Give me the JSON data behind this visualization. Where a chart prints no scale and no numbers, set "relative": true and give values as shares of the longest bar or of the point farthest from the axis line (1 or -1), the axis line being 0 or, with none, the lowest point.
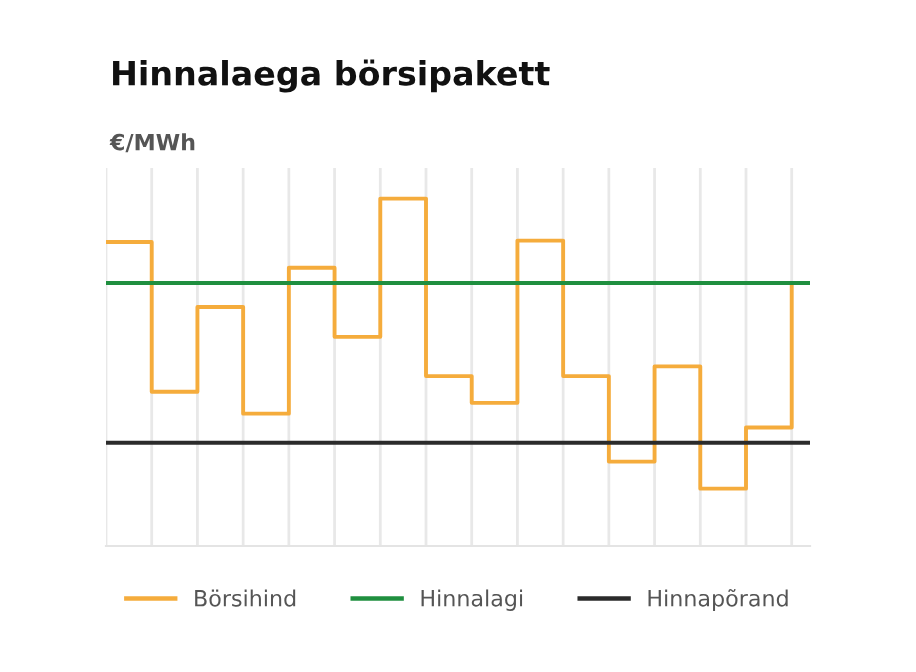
{
  "chart_data": {
    "type": "step",
    "title": "Hinnalaega börsipakett",
    "ylabel": "€/MWh",
    "relative": true,
    "categories": [
      null,
      null,
      null,
      null,
      null,
      null,
      null,
      null,
      null,
      null,
      null,
      null,
      null,
      null,
      null,
      null
    ],
    "series": [
      {
        "name": "Börsihind",
        "color": "#f5ac3c",
        "values": [
          0.875,
          0.444,
          0.688,
          0.381,
          0.801,
          0.602,
          1.0,
          0.489,
          0.412,
          0.879,
          0.489,
          0.243,
          0.517,
          0.165,
          0.341,
          0.757
        ]
      }
    ],
    "ref_lines": [
      {
        "axis": "y",
        "value": 0.757,
        "label": "Hinnalagi",
        "color": "#1f8f3f"
      },
      {
        "axis": "y",
        "value": 0.297,
        "label": "Hinnapõrand",
        "color": "#2b2b2b"
      }
    ],
    "grid": "x",
    "legend": "bottom"
  }
}
